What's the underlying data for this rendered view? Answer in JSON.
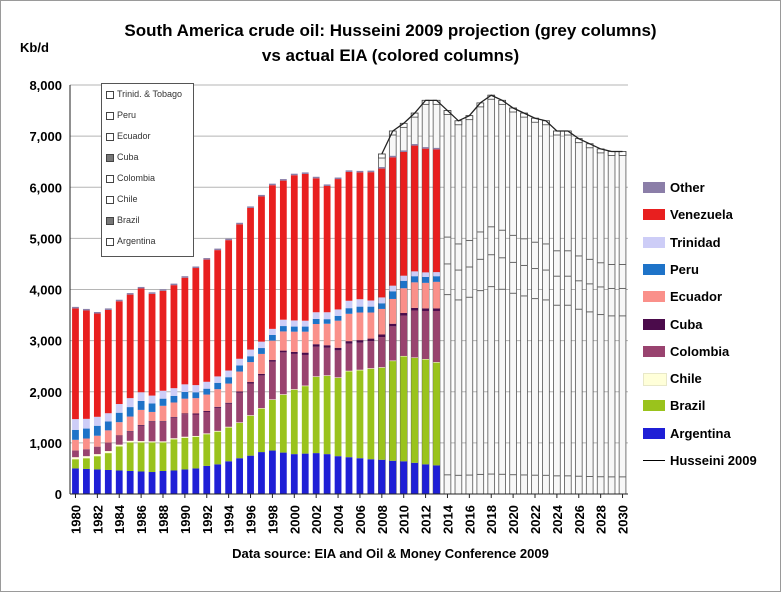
{
  "chart_data": {
    "type": "bar",
    "title": "South America crude oil: Husseini 2009 projection (grey columns)",
    "subtitle": "vs actual EIA (colored columns)",
    "ylabel": "Kb/d",
    "source": "Data source: EIA and Oil & Money Conference 2009",
    "ylim": [
      0,
      8000
    ],
    "yticks": [
      "0",
      "1,000",
      "2,000",
      "3,000",
      "4,000",
      "5,000",
      "6,000",
      "7,000",
      "8,000"
    ],
    "ytick_values": [
      0,
      1000,
      2000,
      3000,
      4000,
      5000,
      6000,
      7000,
      8000
    ],
    "grid": true,
    "legend_position": "right",
    "x_tick_labels": [
      "1980",
      "1982",
      "1984",
      "1986",
      "1988",
      "1990",
      "1992",
      "1994",
      "1996",
      "1998",
      "2000",
      "2002",
      "2004",
      "2006",
      "2008",
      "2010",
      "2012",
      "2014",
      "2016",
      "2018",
      "2020",
      "2022",
      "2024",
      "2026",
      "2028",
      "2030"
    ],
    "actual": {
      "years": [
        1980,
        1981,
        1982,
        1983,
        1984,
        1985,
        1986,
        1987,
        1988,
        1989,
        1990,
        1991,
        1992,
        1993,
        1994,
        1995,
        1996,
        1997,
        1998,
        1999,
        2000,
        2001,
        2002,
        2003,
        2004,
        2005,
        2006,
        2007,
        2008,
        2009,
        2010,
        2011,
        2012,
        2013
      ],
      "series": [
        {
          "name": "Argentina",
          "color": "#1f1fd6",
          "values": [
            500,
            490,
            480,
            470,
            460,
            450,
            440,
            430,
            450,
            460,
            480,
            500,
            550,
            580,
            640,
            700,
            750,
            820,
            850,
            810,
            780,
            790,
            800,
            780,
            740,
            720,
            700,
            680,
            670,
            650,
            640,
            610,
            580,
            560
          ]
        },
        {
          "name": "Brazil",
          "color": "#9ac31c",
          "values": [
            180,
            210,
            260,
            330,
            470,
            560,
            570,
            580,
            560,
            610,
            620,
            620,
            620,
            640,
            660,
            690,
            780,
            850,
            990,
            1130,
            1260,
            1320,
            1490,
            1530,
            1530,
            1680,
            1720,
            1770,
            1800,
            1950,
            2050,
            2050,
            2050,
            2010
          ]
        },
        {
          "name": "Chile",
          "color": "#ffffd9",
          "values": [
            40,
            40,
            40,
            40,
            35,
            30,
            25,
            20,
            20,
            20,
            20,
            15,
            15,
            15,
            15,
            10,
            10,
            10,
            10,
            10,
            10,
            10,
            10,
            10,
            10,
            10,
            10,
            10,
            10,
            10,
            10,
            10,
            10,
            10
          ]
        },
        {
          "name": "Colombia",
          "color": "#99436f",
          "values": [
            125,
            130,
            140,
            160,
            170,
            175,
            300,
            380,
            380,
            400,
            440,
            420,
            420,
            450,
            450,
            580,
            620,
            640,
            740,
            820,
            690,
            600,
            580,
            540,
            530,
            530,
            530,
            530,
            590,
            670,
            790,
            920,
            940,
            1000
          ]
        },
        {
          "name": "Cuba",
          "color": "#4b0b4b",
          "values": [
            5,
            5,
            5,
            5,
            10,
            15,
            15,
            15,
            15,
            15,
            15,
            20,
            20,
            20,
            20,
            25,
            30,
            30,
            30,
            35,
            40,
            45,
            50,
            50,
            50,
            50,
            50,
            50,
            50,
            50,
            50,
            50,
            50,
            50
          ]
        },
        {
          "name": "Ecuador",
          "color": "#fa908a",
          "values": [
            210,
            210,
            215,
            240,
            260,
            285,
            295,
            180,
            300,
            285,
            290,
            300,
            320,
            345,
            375,
            390,
            390,
            390,
            380,
            375,
            395,
            410,
            395,
            420,
            530,
            535,
            540,
            510,
            500,
            485,
            485,
            500,
            500,
            520
          ]
        },
        {
          "name": "Peru",
          "color": "#1e73c8",
          "values": [
            195,
            195,
            195,
            175,
            185,
            185,
            175,
            165,
            140,
            130,
            130,
            115,
            115,
            125,
            125,
            120,
            115,
            115,
            110,
            105,
            100,
            100,
            100,
            90,
            95,
            110,
            115,
            115,
            110,
            150,
            145,
            120,
            115,
            110
          ]
        },
        {
          "name": "Trinidad",
          "color": "#cdcdf7",
          "values": [
            210,
            190,
            175,
            160,
            170,
            175,
            170,
            155,
            155,
            150,
            150,
            140,
            135,
            125,
            130,
            130,
            130,
            125,
            120,
            125,
            120,
            115,
            130,
            135,
            125,
            145,
            145,
            120,
            115,
            110,
            100,
            95,
            90,
            80
          ]
        },
        {
          "name": "Venezuela",
          "color": "#e81f1f",
          "values": [
            2165,
            2120,
            2020,
            2020,
            2010,
            2025,
            2030,
            1990,
            1955,
            2015,
            2085,
            2290,
            2390,
            2470,
            2550,
            2630,
            2770,
            2840,
            2810,
            2720,
            2840,
            2870,
            2620,
            2470,
            2550,
            2520,
            2480,
            2510,
            2520,
            2510,
            2420,
            2460,
            2420,
            2400
          ]
        },
        {
          "name": "Other",
          "color": "#8b7ea8",
          "values": [
            30,
            30,
            30,
            30,
            30,
            30,
            30,
            30,
            30,
            30,
            30,
            30,
            30,
            30,
            30,
            30,
            30,
            30,
            30,
            30,
            30,
            30,
            30,
            30,
            30,
            30,
            30,
            30,
            30,
            30,
            30,
            30,
            30,
            30
          ]
        }
      ]
    },
    "projection": {
      "name": "Husseini 2009",
      "years": [
        2008,
        2009,
        2010,
        2011,
        2012,
        2013,
        2014,
        2015,
        2016,
        2017,
        2018,
        2019,
        2020,
        2021,
        2022,
        2023,
        2024,
        2025,
        2026,
        2027,
        2028,
        2029,
        2030
      ],
      "values": [
        6650,
        7100,
        7250,
        7450,
        7700,
        7700,
        7500,
        7300,
        7400,
        7650,
        7800,
        7700,
        7550,
        7450,
        7350,
        7300,
        7100,
        7100,
        6950,
        6850,
        6750,
        6700,
        6700
      ]
    },
    "scan_legend_entries": [
      "Trinid. & Tobago",
      "Peru",
      "Ecuador",
      "Cuba",
      "Colombia",
      "Chile",
      "Brazil",
      "Argentina"
    ],
    "legend_entries": [
      "Other",
      "Venezuela",
      "Trinidad",
      "Peru",
      "Ecuador",
      "Cuba",
      "Colombia",
      "Chile",
      "Brazil",
      "Argentina",
      "Husseini 2009"
    ],
    "legend_colors": [
      "#8b7ea8",
      "#e81f1f",
      "#cdcdf7",
      "#1e73c8",
      "#fa908a",
      "#4b0b4b",
      "#99436f",
      "#ffffd9",
      "#9ac31c",
      "#1f1fd6",
      "#000000"
    ]
  }
}
